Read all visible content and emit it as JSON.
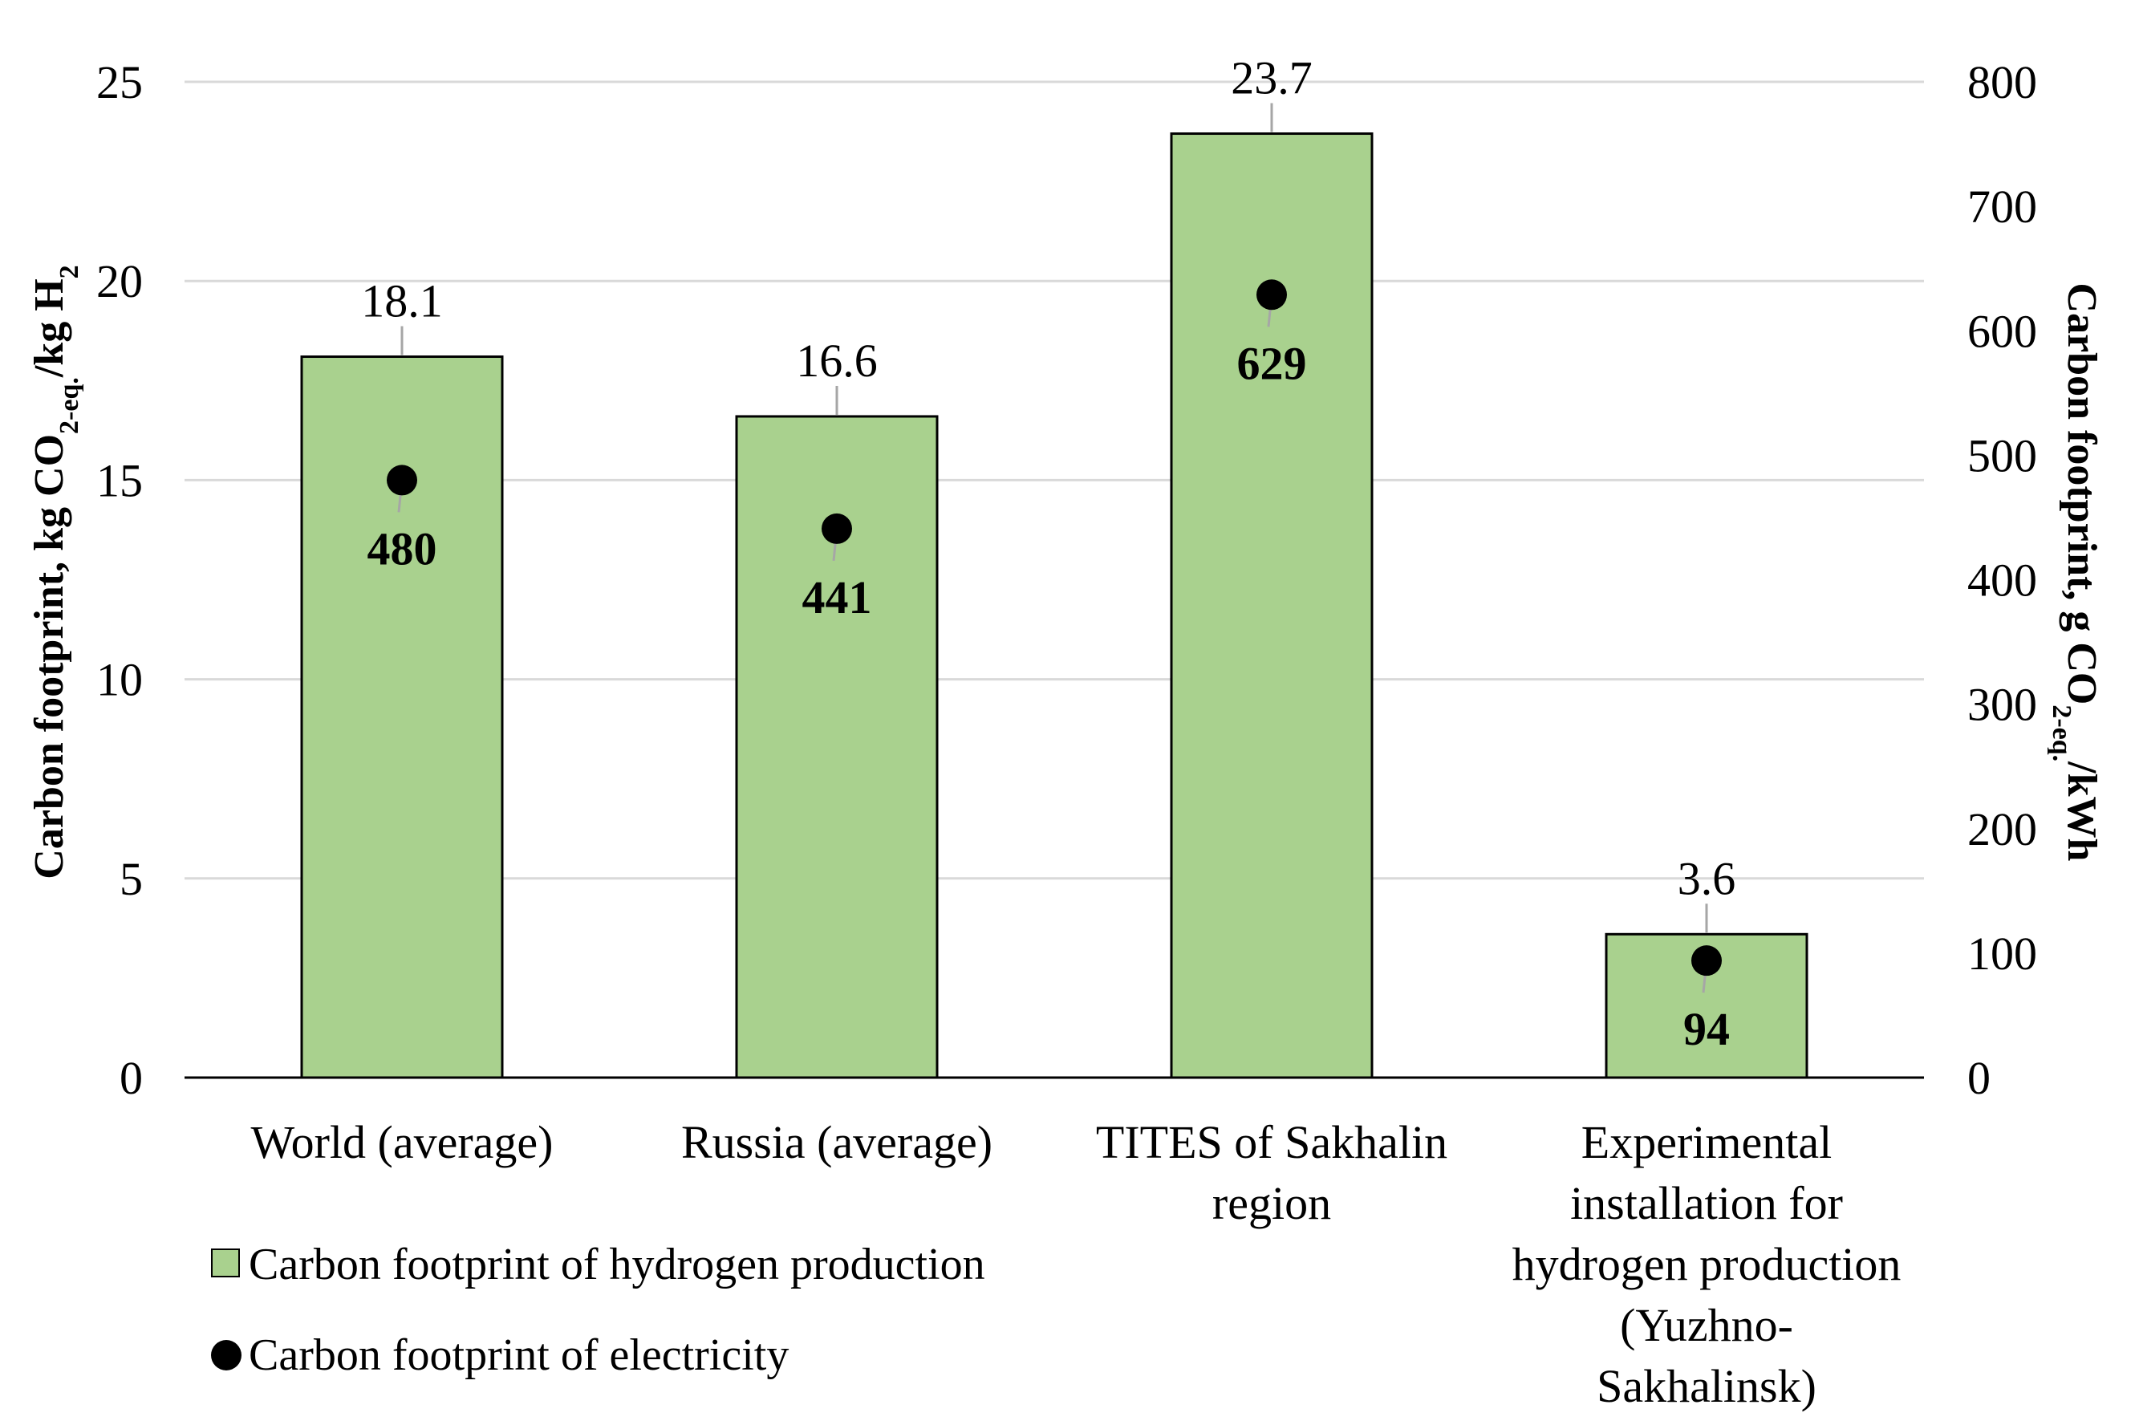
{
  "chart_data": {
    "type": "bar",
    "categories": [
      [
        "World (average)"
      ],
      [
        "Russia (average)"
      ],
      [
        "TITES of Sakhalin",
        "region"
      ],
      [
        "Experimental",
        "installation for",
        "hydrogen production",
        "(Yuzhno-",
        "Sakhalinsk)"
      ]
    ],
    "series": [
      {
        "name": "Carbon footprint of hydrogen production",
        "type": "bar",
        "axis": "left",
        "values": [
          18.1,
          16.6,
          23.7,
          3.6
        ],
        "labels": [
          "18.1",
          "16.6",
          "23.7",
          "3.6"
        ],
        "color": "#a9d18e"
      },
      {
        "name": "Carbon footprint of electricity",
        "type": "scatter",
        "axis": "right",
        "values": [
          480,
          441,
          629,
          94
        ],
        "labels": [
          "480",
          "441",
          "629",
          "94"
        ],
        "color": "#000000"
      }
    ],
    "y_left": {
      "label_parts": [
        {
          "t": "Carbon footprint, kg CO"
        },
        {
          "t": "2-eq.",
          "sub": true
        },
        {
          "t": "/kg H"
        },
        {
          "t": "2",
          "sub": true
        }
      ],
      "ylim": [
        0,
        25
      ],
      "ticks": [
        "0",
        "5",
        "10",
        "15",
        "20",
        "25"
      ]
    },
    "y_right": {
      "label_parts": [
        {
          "t": "Carbon footprint, g CO"
        },
        {
          "t": "2-eq.",
          "sub": true
        },
        {
          "t": "/kWh"
        }
      ],
      "ylim": [
        0,
        800
      ],
      "ticks": [
        "0",
        "100",
        "200",
        "300",
        "400",
        "500",
        "600",
        "700",
        "800"
      ]
    },
    "grid": true,
    "legend_position": "bottom-left"
  }
}
